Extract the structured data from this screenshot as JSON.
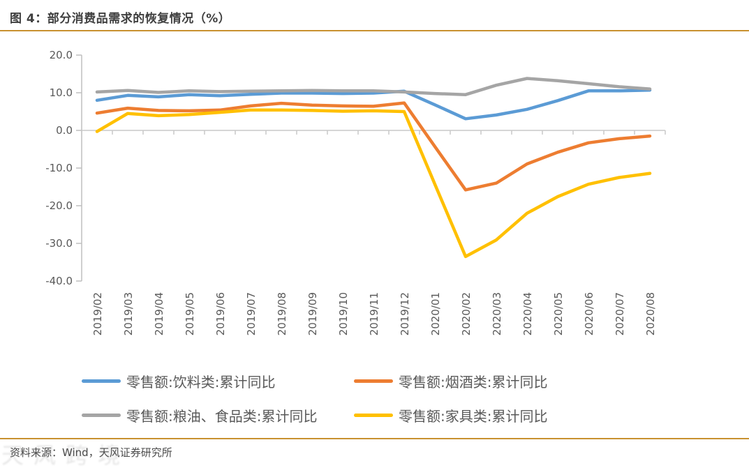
{
  "page": {
    "title": "图 4：部分消费品需求的恢复情况（%）",
    "source": "资料来源：Wind，天风证券研究所",
    "watermark": "天风跨境",
    "accent_rule_color": "#C8912F",
    "text_color": "#595959"
  },
  "chart_data": {
    "type": "line",
    "title": "部分消费品需求的恢复情况（%）",
    "categories": [
      "2019/02",
      "2019/03",
      "2019/04",
      "2019/05",
      "2019/06",
      "2019/07",
      "2019/08",
      "2019/09",
      "2019/10",
      "2019/11",
      "2019/12",
      "2020/01",
      "2020/02",
      "2020/03",
      "2020/04",
      "2020/05",
      "2020/06",
      "2020/07",
      "2020/08"
    ],
    "series": [
      {
        "name": "零售额:饮料类:累计同比",
        "color": "#5B9BD5",
        "values": [
          8.0,
          9.3,
          8.9,
          9.5,
          9.2,
          9.6,
          9.9,
          9.9,
          9.8,
          9.9,
          10.4,
          6.8,
          3.1,
          4.1,
          5.6,
          7.9,
          10.5,
          10.5,
          10.7
        ]
      },
      {
        "name": "零售额:烟酒类:累计同比",
        "color": "#ED7D31",
        "values": [
          4.6,
          5.9,
          5.3,
          5.2,
          5.4,
          6.5,
          7.2,
          6.7,
          6.5,
          6.4,
          7.3,
          -4.3,
          -15.8,
          -14.0,
          -8.9,
          -5.8,
          -3.3,
          -2.2,
          -1.5
        ]
      },
      {
        "name": "零售额:粮油、食品类:累计同比",
        "color": "#A5A5A5",
        "values": [
          10.2,
          10.6,
          10.1,
          10.5,
          10.3,
          10.4,
          10.5,
          10.6,
          10.5,
          10.5,
          10.2,
          9.8,
          9.5,
          12.0,
          13.8,
          13.2,
          12.4,
          11.6,
          11.0
        ]
      },
      {
        "name": "零售额:家具类:累计同比",
        "color": "#FFC000",
        "values": [
          -0.3,
          4.5,
          3.9,
          4.2,
          4.8,
          5.4,
          5.4,
          5.3,
          5.1,
          5.2,
          5.0,
          -14.3,
          -33.5,
          -29.1,
          -22.0,
          -17.6,
          -14.3,
          -12.5,
          -11.4
        ]
      }
    ],
    "ylim": [
      -40,
      20
    ],
    "ytick_step": 10,
    "yticks": [
      "20.0",
      "10.0",
      "0.0",
      "-10.0",
      "-20.0",
      "-30.0",
      "-40.0"
    ],
    "grid": false,
    "zero_line": true,
    "legend_position": "bottom",
    "axis_color": "#BFBFBF",
    "zero_line_color": "#C9C9C9"
  }
}
